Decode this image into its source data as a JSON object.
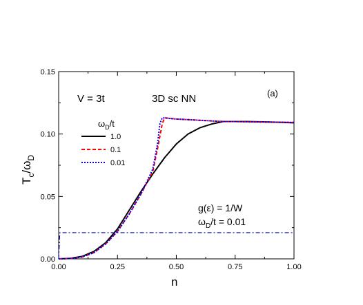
{
  "chart_data": {
    "type": "line",
    "panel_label": "(a)",
    "annotations": {
      "v_label": "V = 3t",
      "lattice_label": "3D sc  NN",
      "legend_title": "ω_D/t",
      "dos_label": "g(ε) = 1/W",
      "omega_label": "ω_D/t = 0.01"
    },
    "xlabel": "n",
    "ylabel": "T_c/ω_D",
    "xlim": [
      0,
      1
    ],
    "ylim": [
      0,
      0.15
    ],
    "xticks": [
      "0.00",
      "0.25",
      "0.50",
      "0.75",
      "1.00"
    ],
    "yticks": [
      "0.00",
      "0.05",
      "0.10",
      "0.15"
    ],
    "legend_position": "upper-left",
    "series": [
      {
        "name": "1.0",
        "color": "#000000",
        "style": "solid",
        "x": [
          0.0,
          0.05,
          0.1,
          0.15,
          0.2,
          0.25,
          0.3,
          0.35,
          0.4,
          0.45,
          0.5,
          0.55,
          0.6,
          0.65,
          0.7,
          0.75,
          0.8,
          0.85,
          0.9,
          0.95,
          1.0
        ],
        "y": [
          0.0,
          0.0004,
          0.002,
          0.006,
          0.013,
          0.024,
          0.039,
          0.054,
          0.068,
          0.081,
          0.092,
          0.1,
          0.105,
          0.108,
          0.11,
          0.11,
          0.11,
          0.1098,
          0.1096,
          0.1093,
          0.109
        ]
      },
      {
        "name": "0.1",
        "color": "#ff0000",
        "style": "dashed",
        "x": [
          0.0,
          0.05,
          0.1,
          0.15,
          0.2,
          0.25,
          0.3,
          0.35,
          0.4,
          0.42,
          0.44,
          0.45,
          0.5,
          0.55,
          0.6,
          0.65,
          0.7,
          0.75,
          0.8,
          0.9,
          1.0
        ],
        "y": [
          0.0,
          0.0003,
          0.0015,
          0.005,
          0.012,
          0.022,
          0.036,
          0.052,
          0.07,
          0.088,
          0.108,
          0.113,
          0.112,
          0.1115,
          0.111,
          0.1105,
          0.11,
          0.11,
          0.1098,
          0.1095,
          0.1093
        ]
      },
      {
        "name": "0.01",
        "color": "#0000ff",
        "style": "dotted",
        "x": [
          0.0,
          0.05,
          0.1,
          0.15,
          0.2,
          0.25,
          0.3,
          0.35,
          0.4,
          0.42,
          0.43,
          0.44,
          0.5,
          0.55,
          0.6,
          0.65,
          0.7,
          0.75,
          0.8,
          0.9,
          1.0
        ],
        "y": [
          0.0,
          0.0003,
          0.0015,
          0.005,
          0.012,
          0.022,
          0.036,
          0.052,
          0.072,
          0.092,
          0.108,
          0.113,
          0.112,
          0.1115,
          0.111,
          0.1105,
          0.11,
          0.11,
          0.1098,
          0.1095,
          0.1093
        ]
      },
      {
        "name": "",
        "color": "#0000aa",
        "style": "dashdot",
        "x": [
          0.0,
          0.005,
          0.01,
          1.0
        ],
        "y": [
          0.0,
          0.021,
          0.021,
          0.021
        ]
      }
    ]
  }
}
